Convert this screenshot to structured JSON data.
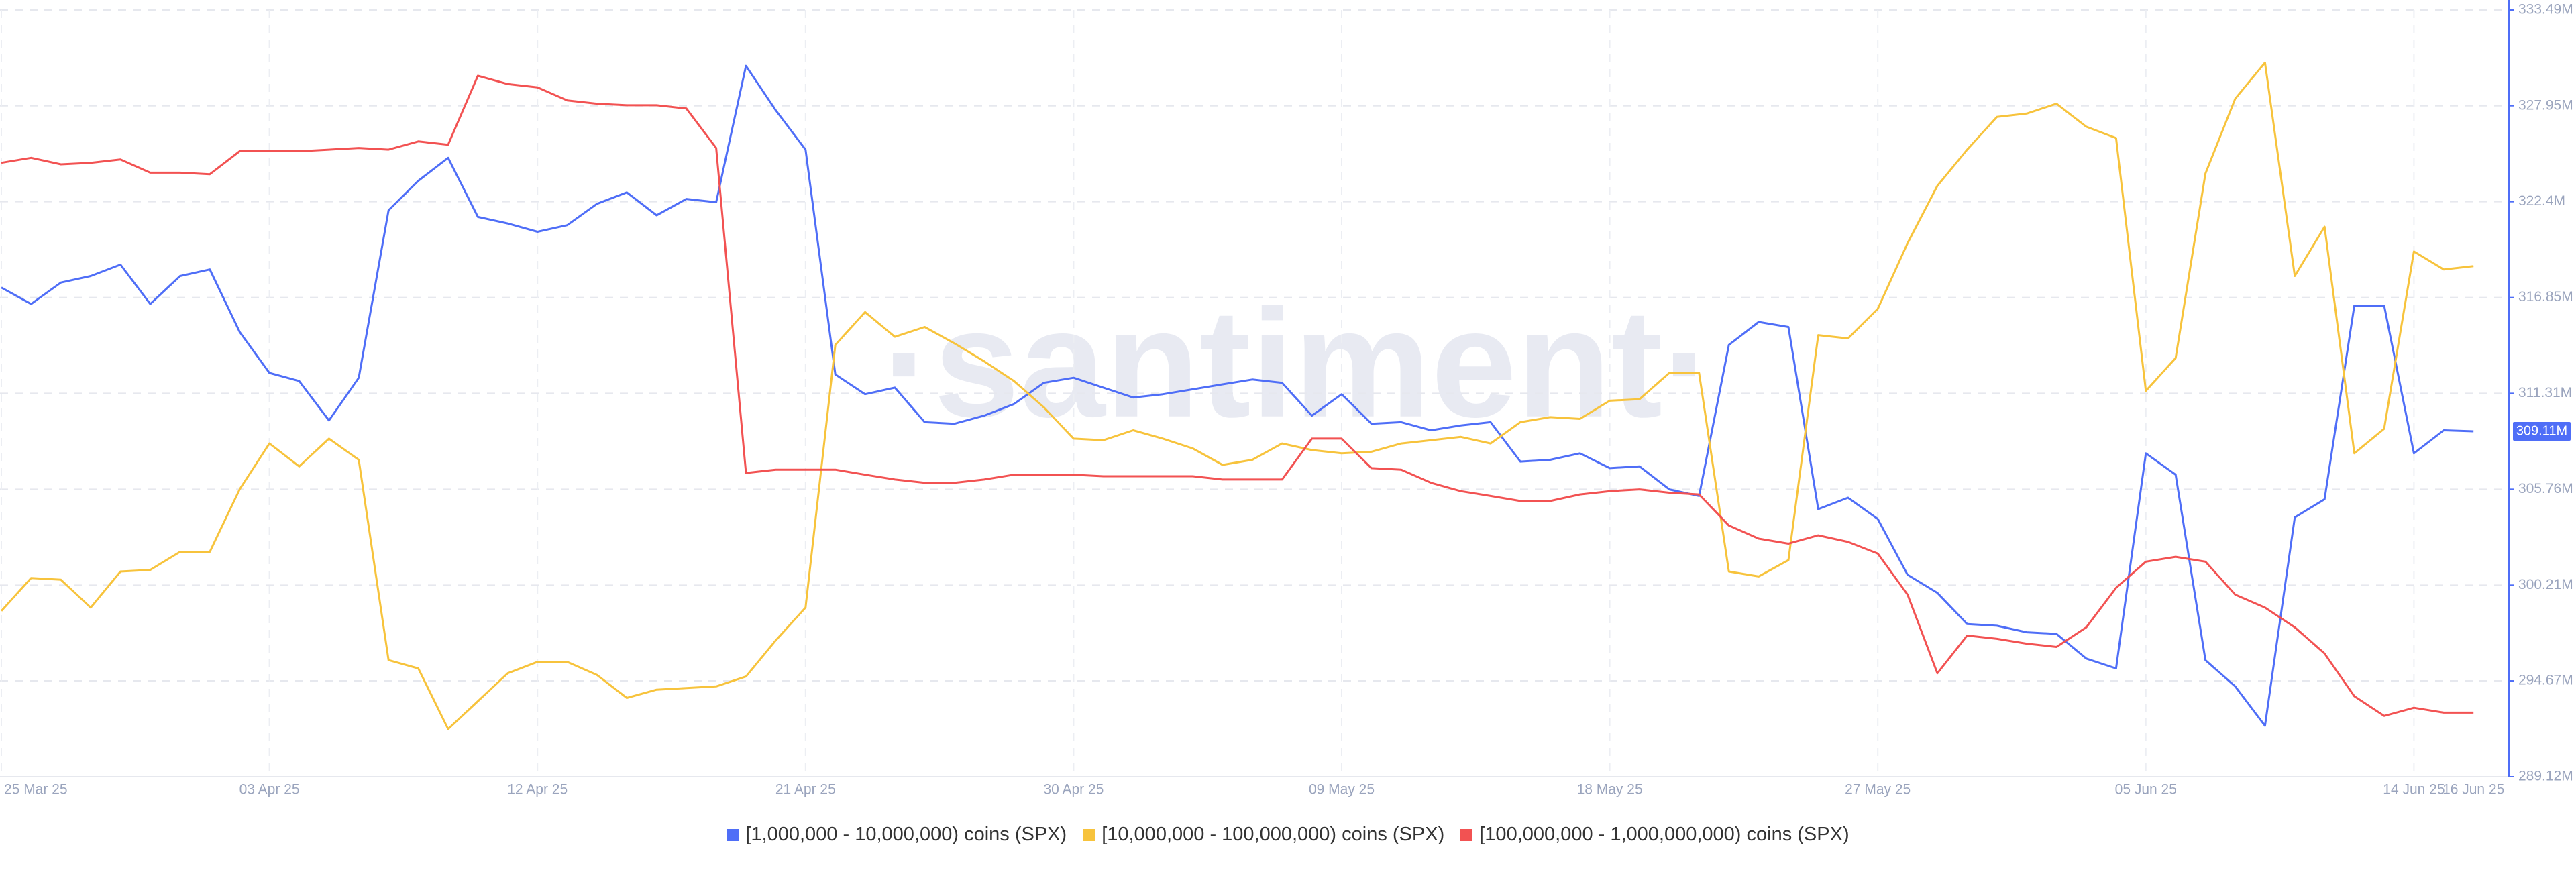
{
  "chart_data": {
    "type": "line",
    "watermark": "·santiment·",
    "categories": [
      "25 Mar 25",
      null,
      null,
      null,
      null,
      null,
      null,
      null,
      null,
      "03 Apr 25",
      null,
      null,
      null,
      null,
      null,
      null,
      null,
      null,
      "12 Apr 25",
      null,
      null,
      null,
      null,
      null,
      null,
      null,
      null,
      "21 Apr 25",
      null,
      null,
      null,
      null,
      null,
      null,
      null,
      null,
      "30 Apr 25",
      null,
      null,
      null,
      null,
      null,
      null,
      null,
      null,
      "09 May 25",
      null,
      null,
      null,
      null,
      null,
      null,
      null,
      null,
      "18 May 25",
      null,
      null,
      null,
      null,
      null,
      null,
      null,
      null,
      "27 May 25",
      null,
      null,
      null,
      null,
      null,
      null,
      null,
      null,
      "05 Jun 25",
      null,
      null,
      null,
      null,
      null,
      null,
      null,
      null,
      "14 Jun 25",
      null,
      "16 Jun 25"
    ],
    "ylim": [
      289.12,
      333.49
    ],
    "yticks": [
      {
        "value": 289.12,
        "label": "289.12M"
      },
      {
        "value": 294.67,
        "label": "294.67M"
      },
      {
        "value": 300.21,
        "label": "300.21M"
      },
      {
        "value": 305.76,
        "label": "305.76M"
      },
      {
        "value": 311.31,
        "label": "311.31M"
      },
      {
        "value": 316.85,
        "label": "316.85M"
      },
      {
        "value": 322.4,
        "label": "322.4M"
      },
      {
        "value": 327.95,
        "label": "327.95M"
      },
      {
        "value": 333.49,
        "label": "333.49M"
      }
    ],
    "grid": true,
    "last_value_label": "309.11M",
    "series": [
      {
        "name": "[1,000,000 - 10,000,000) coins (SPX)",
        "color": "#4f6ef7",
        "values": [
          317.43,
          316.48,
          317.72,
          318.1,
          318.76,
          316.48,
          318.1,
          318.48,
          314.87,
          312.49,
          312.02,
          309.74,
          312.21,
          321.9,
          323.61,
          324.94,
          321.52,
          321.14,
          320.66,
          321.04,
          322.28,
          322.94,
          321.61,
          322.56,
          322.37,
          330.26,
          327.69,
          325.41,
          312.4,
          311.26,
          311.64,
          309.64,
          309.55,
          310.02,
          310.69,
          311.92,
          312.21,
          311.64,
          311.07,
          311.26,
          311.54,
          311.83,
          312.11,
          311.92,
          310.02,
          311.26,
          309.55,
          309.64,
          309.17,
          309.45,
          309.64,
          307.36,
          307.46,
          307.84,
          306.98,
          307.08,
          305.75,
          305.37,
          314.11,
          315.44,
          315.15,
          304.61,
          305.27,
          304.04,
          300.81,
          299.76,
          297.96,
          297.86,
          297.48,
          297.39,
          295.96,
          295.39,
          307.84,
          306.6,
          295.87,
          294.35,
          292.07,
          304.13,
          305.18,
          316.39,
          316.39,
          307.84,
          309.17,
          309.11
        ]
      },
      {
        "name": "[10,000,000 - 100,000,000) coins (SPX)",
        "color": "#f7c33c",
        "values": [
          298.72,
          300.62,
          300.52,
          298.91,
          301.0,
          301.09,
          302.14,
          302.14,
          305.75,
          308.41,
          307.08,
          308.69,
          307.46,
          295.87,
          295.39,
          291.88,
          293.49,
          295.11,
          295.77,
          295.77,
          295.01,
          293.68,
          294.16,
          294.25,
          294.35,
          294.92,
          297.01,
          298.91,
          314.11,
          316.01,
          314.58,
          315.15,
          314.2,
          313.16,
          312.02,
          310.5,
          308.69,
          308.6,
          309.17,
          308.69,
          308.12,
          307.17,
          307.46,
          308.41,
          308.03,
          307.84,
          307.93,
          308.41,
          308.6,
          308.79,
          308.41,
          309.64,
          309.93,
          309.83,
          310.88,
          310.97,
          312.49,
          312.49,
          301.0,
          300.71,
          301.66,
          314.68,
          314.49,
          316.2,
          320.0,
          323.32,
          325.41,
          327.31,
          327.5,
          328.07,
          326.74,
          326.08,
          311.45,
          313.35,
          324.03,
          328.36,
          330.45,
          318.1,
          320.95,
          307.84,
          309.26,
          319.52,
          318.48,
          318.67
        ]
      },
      {
        "name": "[100,000,000 - 1,000,000,000) coins (SPX)",
        "color": "#f25252",
        "values": [
          324.65,
          324.94,
          324.56,
          324.65,
          324.84,
          324.08,
          324.08,
          323.99,
          325.32,
          325.32,
          325.32,
          325.41,
          325.51,
          325.41,
          325.89,
          325.7,
          329.69,
          329.21,
          329.02,
          328.26,
          328.07,
          327.98,
          327.98,
          327.79,
          325.51,
          306.7,
          306.89,
          306.89,
          306.89,
          306.6,
          306.32,
          306.13,
          306.13,
          306.32,
          306.6,
          306.6,
          306.6,
          306.51,
          306.51,
          306.51,
          306.51,
          306.32,
          306.32,
          306.32,
          308.69,
          308.69,
          306.98,
          306.89,
          306.13,
          305.65,
          305.37,
          305.08,
          305.08,
          305.46,
          305.65,
          305.75,
          305.56,
          305.46,
          303.66,
          302.9,
          302.61,
          303.09,
          302.71,
          302.04,
          299.66,
          295.11,
          297.29,
          297.1,
          296.82,
          296.63,
          297.77,
          300.05,
          301.57,
          301.85,
          301.57,
          299.66,
          298.91,
          297.77,
          296.25,
          293.78,
          292.64,
          293.11,
          292.83,
          292.83
        ]
      }
    ]
  }
}
